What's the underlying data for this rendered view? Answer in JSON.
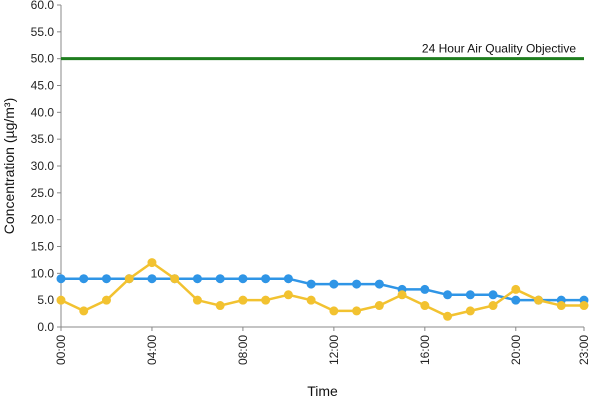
{
  "chart_data": {
    "type": "line",
    "title": "",
    "xlabel": "Time",
    "ylabel": "Concentration (µg/m³)",
    "ylim": [
      0,
      60
    ],
    "yticks": [
      "0.0",
      "5.0",
      "10.0",
      "15.0",
      "20.0",
      "25.0",
      "30.0",
      "35.0",
      "40.0",
      "45.0",
      "50.0",
      "55.0",
      "60.0"
    ],
    "x": [
      "00:00",
      "01:00",
      "02:00",
      "03:00",
      "04:00",
      "05:00",
      "06:00",
      "07:00",
      "08:00",
      "09:00",
      "10:00",
      "11:00",
      "12:00",
      "13:00",
      "14:00",
      "15:00",
      "16:00",
      "17:00",
      "18:00",
      "19:00",
      "20:00",
      "21:00",
      "22:00",
      "23:00"
    ],
    "xticks": [
      "00:00",
      "04:00",
      "08:00",
      "12:00",
      "16:00",
      "20:00",
      "23:00"
    ],
    "grid": false,
    "objective": {
      "label": "24 Hour Air Quality Objective",
      "value": 50,
      "color": "#1e7d1e"
    },
    "series": [
      {
        "color": "#2f95e6",
        "values": [
          9,
          9,
          9,
          9,
          9,
          9,
          9,
          9,
          9,
          9,
          9,
          8,
          8,
          8,
          8,
          7,
          7,
          6,
          6,
          6,
          5,
          5,
          5,
          5
        ]
      },
      {
        "color": "#f2c230",
        "values": [
          5,
          3,
          5,
          9,
          12,
          9,
          5,
          4,
          5,
          5,
          6,
          5,
          3,
          3,
          4,
          6,
          4,
          2,
          3,
          4,
          7,
          5,
          4,
          4
        ]
      }
    ]
  }
}
